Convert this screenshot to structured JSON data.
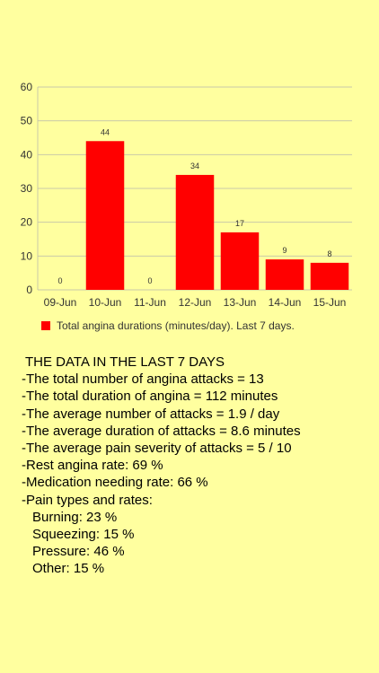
{
  "chart_data": {
    "type": "bar",
    "categories": [
      "09-Jun",
      "10-Jun",
      "11-Jun",
      "12-Jun",
      "13-Jun",
      "14-Jun",
      "15-Jun"
    ],
    "series": [
      {
        "name": "Total angina durations (minutes/day). Last 7 days.",
        "values": [
          0,
          44,
          0,
          34,
          17,
          9,
          8
        ],
        "color": "#ff0000"
      }
    ],
    "yticks": [
      0,
      10,
      20,
      30,
      40,
      50,
      60
    ],
    "ylim": [
      0,
      60
    ],
    "grid": true,
    "legend_position": "bottom-left"
  },
  "stats": {
    "heading": "THE DATA IN THE LAST 7 DAYS",
    "lines": [
      "-The total number of angina attacks = 13",
      "-The total duration of angina = 112 minutes",
      "-The average number of attacks = 1.9 / day",
      "-The average duration of attacks = 8.6 minutes",
      "-The average pain severity of attacks = 5 / 10",
      "-Rest angina rate: 69 %",
      "-Medication needing rate: 66 %",
      "-Pain types and rates:"
    ],
    "pain_types": [
      "Burning: 23 %",
      "Squeezing: 15 %",
      "Pressure: 46 %",
      "Other: 15 %"
    ]
  }
}
